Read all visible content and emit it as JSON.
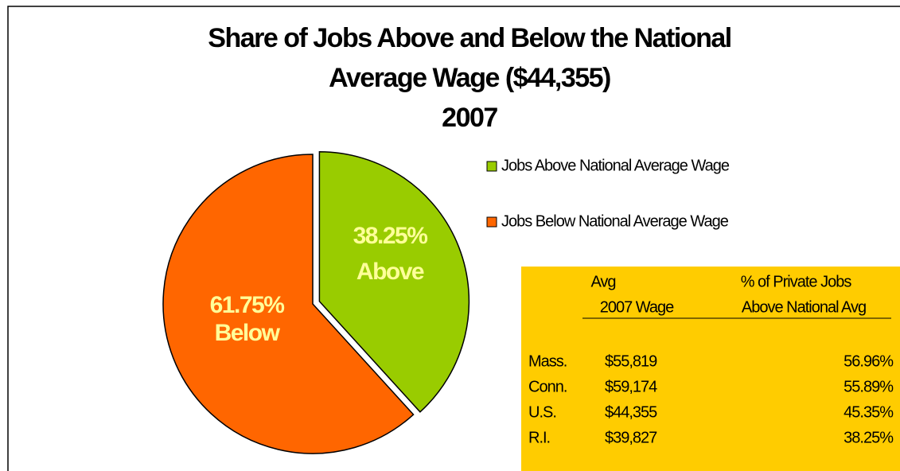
{
  "chart_data": {
    "type": "pie",
    "title": [
      "Share of Jobs Above and Below  the National",
      "Average Wage ($44,355)",
      "2007"
    ],
    "categories": [
      "Jobs Above National Average Wage",
      "Jobs Below National Average Wage"
    ],
    "values": [
      38.25,
      61.75
    ],
    "value_labels": [
      "38.25%",
      "61.75%"
    ],
    "slice_labels": [
      "Above",
      "Below"
    ],
    "colors": [
      "#99cc00",
      "#ff6600"
    ],
    "legend": "right",
    "table": {
      "header": [
        [
          "Avg",
          "2007 Wage"
        ],
        [
          "% of Private Jobs",
          "Above National Avg"
        ]
      ],
      "rows": [
        [
          "Mass.",
          "$55,819",
          "56.96%"
        ],
        [
          "Conn.",
          "$59,174",
          "55.89%"
        ],
        [
          "U.S.",
          "$44,355",
          "45.35%"
        ],
        [
          "R.I.",
          "$39,827",
          "38.25%"
        ]
      ]
    }
  }
}
